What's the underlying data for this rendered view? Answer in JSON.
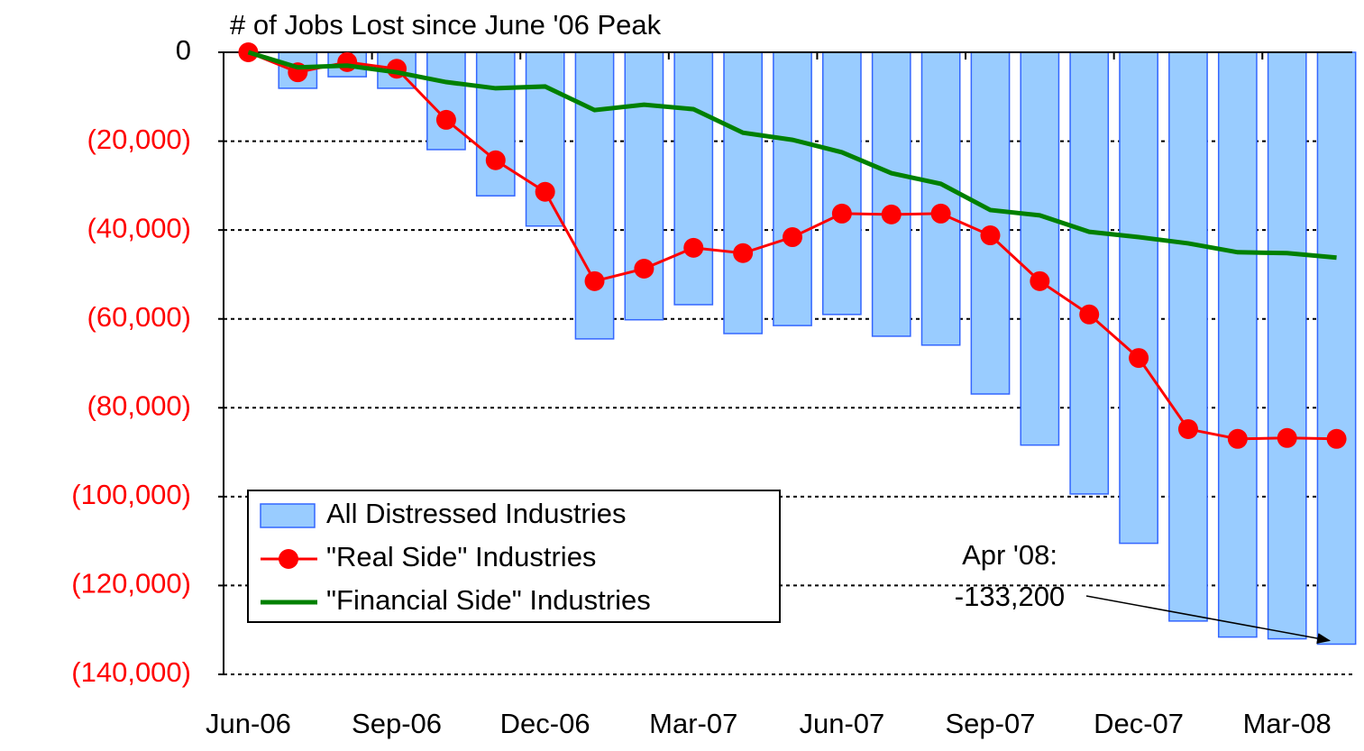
{
  "chart_data": {
    "type": "bar_line",
    "title": "# of Jobs Lost since June '06 Peak",
    "categories": [
      "Jun-06",
      null,
      null,
      "Sep-06",
      null,
      null,
      "Dec-06",
      null,
      null,
      "Mar-07",
      null,
      null,
      "Jun-07",
      null,
      null,
      "Sep-07",
      null,
      null,
      "Dec-07",
      null,
      null,
      "Mar-08",
      null
    ],
    "series": [
      {
        "name": "All Distressed Industries",
        "kind": "bar",
        "color": "#99ccff",
        "edge_color": "#3366ff",
        "values": [
          0,
          -8100,
          -5500,
          -8100,
          -21900,
          -32300,
          -39100,
          -64500,
          -60200,
          -56800,
          -63300,
          -61500,
          -59000,
          -63900,
          -65900,
          -76900,
          -88400,
          -99400,
          -110500,
          -128000,
          -131600,
          -132000,
          -133200
        ]
      },
      {
        "name": "\"Real Side\" Industries",
        "kind": "line",
        "marker": true,
        "color": "#ff0000",
        "values": [
          0,
          -4500,
          -2200,
          -3700,
          -15200,
          -24300,
          -31400,
          -51500,
          -48700,
          -44000,
          -45200,
          -41600,
          -36300,
          -36500,
          -36300,
          -41200,
          -51500,
          -59000,
          -68800,
          -84800,
          -87000,
          -86800,
          -87000
        ]
      },
      {
        "name": "\"Financial Side\" Industries",
        "kind": "line",
        "marker": false,
        "color": "#008000",
        "values": [
          0,
          -3400,
          -3000,
          -4500,
          -6700,
          -8100,
          -7700,
          -13000,
          -11800,
          -12800,
          -18100,
          -19700,
          -22500,
          -27200,
          -29600,
          -35500,
          -36700,
          -40400,
          -41600,
          -43000,
          -45000,
          -45200,
          -46200
        ]
      }
    ],
    "ylim": [
      -140000,
      0
    ],
    "yticks": [
      {
        "value": 0,
        "label": "0"
      },
      {
        "value": -20000,
        "label": "(20,000)"
      },
      {
        "value": -40000,
        "label": "(40,000)"
      },
      {
        "value": -60000,
        "label": "(60,000)"
      },
      {
        "value": -80000,
        "label": "(80,000)"
      },
      {
        "value": -100000,
        "label": "(100,000)"
      },
      {
        "value": -120000,
        "label": "(120,000)"
      },
      {
        "value": -140000,
        "label": "(140,000)"
      }
    ],
    "negative_tick_color": "#ff0000",
    "grid": true,
    "legend": "lower left",
    "annotation": {
      "lines": [
        "Apr '08:",
        "-133,200"
      ],
      "target": 22
    }
  }
}
